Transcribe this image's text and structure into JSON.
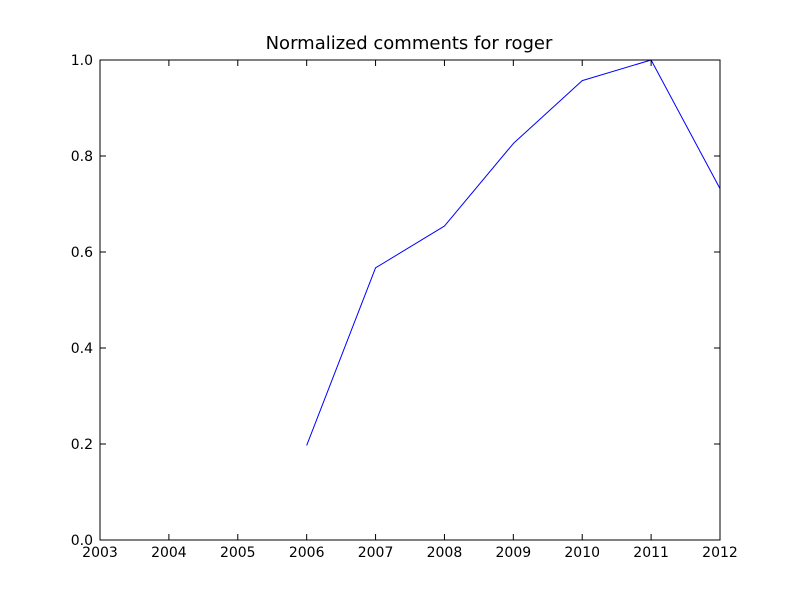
{
  "chart_data": {
    "type": "line",
    "title": "Normalized comments for roger",
    "xlabel": "",
    "ylabel": "",
    "xlim": [
      2003,
      2012
    ],
    "ylim": [
      0.0,
      1.0
    ],
    "x_ticks": [
      2003,
      2004,
      2005,
      2006,
      2007,
      2008,
      2009,
      2010,
      2011,
      2012
    ],
    "x_tick_labels": [
      "2003",
      "2004",
      "2005",
      "2006",
      "2007",
      "2008",
      "2009",
      "2010",
      "2011",
      "2012"
    ],
    "y_ticks": [
      0.0,
      0.2,
      0.4,
      0.6,
      0.8,
      1.0
    ],
    "y_tick_labels": [
      "0.0",
      "0.2",
      "0.4",
      "0.6",
      "0.8",
      "1.0"
    ],
    "grid": false,
    "legend": "none",
    "series": [
      {
        "color": "#0000ff",
        "x": [
          2006,
          2007,
          2008,
          2009,
          2010,
          2011,
          2012
        ],
        "y": [
          0.197,
          0.567,
          0.654,
          0.826,
          0.957,
          1.0,
          0.732
        ]
      }
    ]
  }
}
